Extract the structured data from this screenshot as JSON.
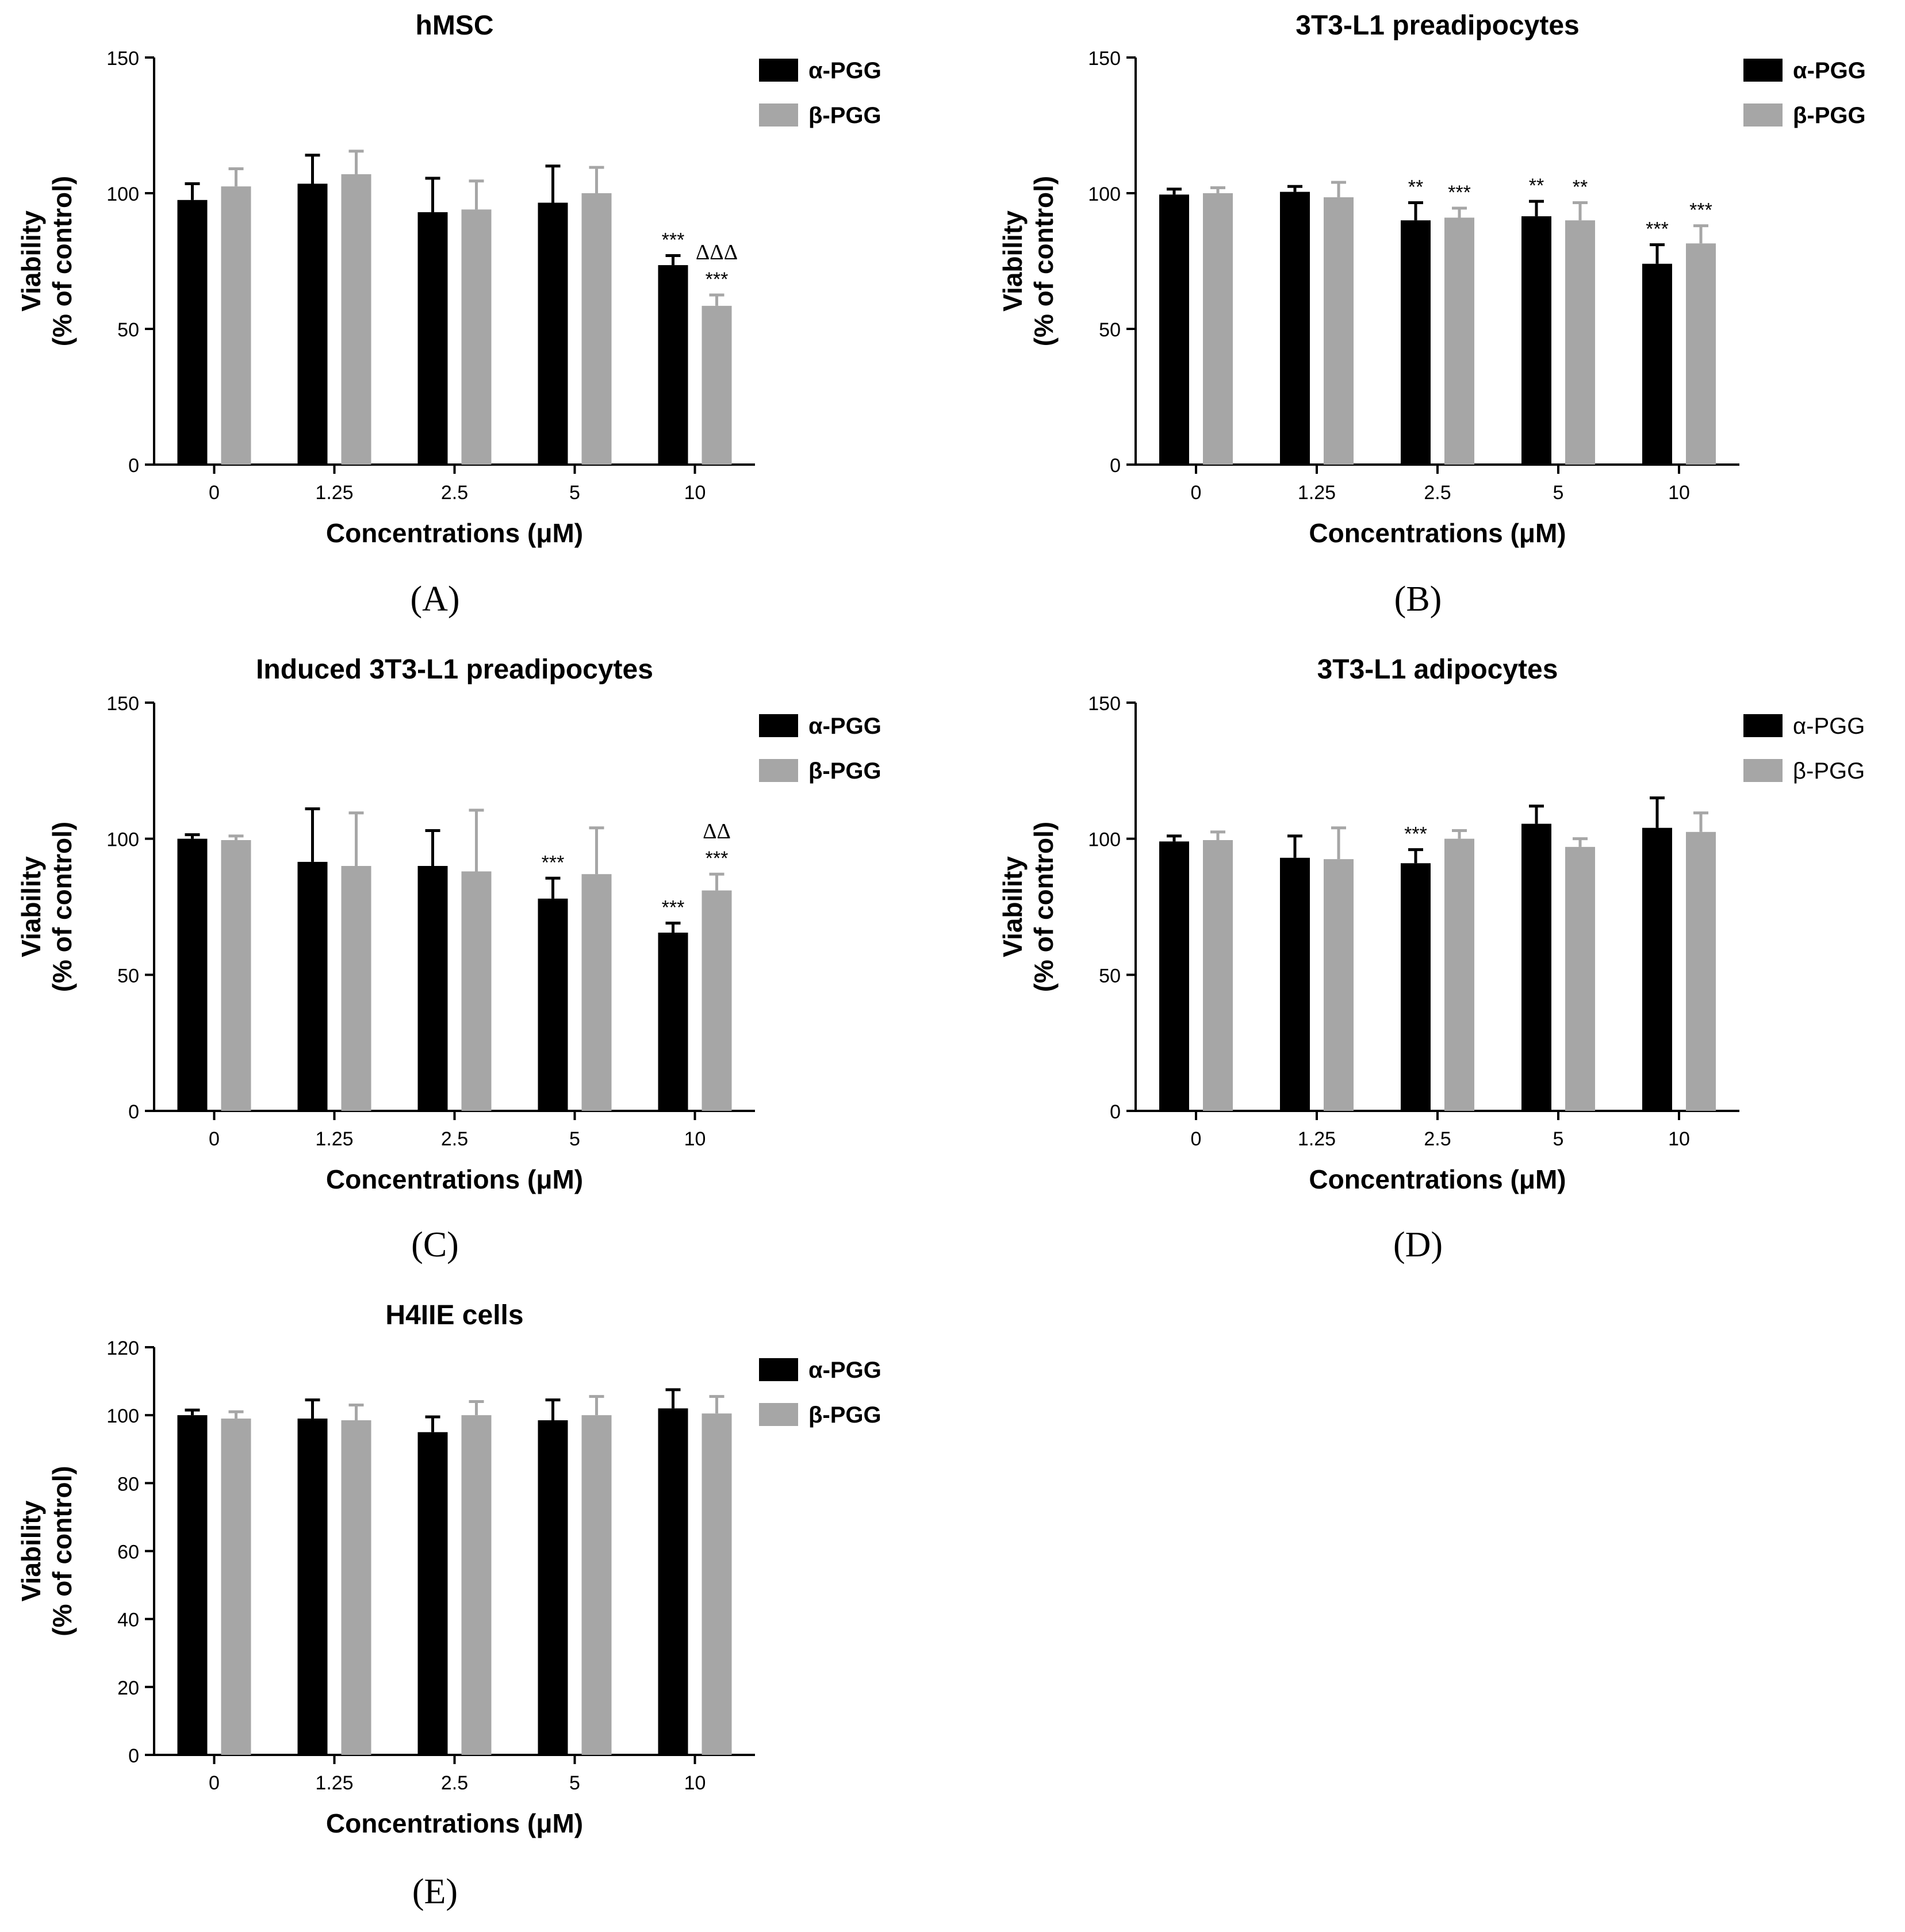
{
  "colors": {
    "alpha": "#000000",
    "beta": "#a6a6a6",
    "axis": "#000000",
    "background": "#ffffff"
  },
  "legend_names": [
    "α-PGG",
    "β-PGG"
  ],
  "chart_data": [
    {
      "type": "bar",
      "panel_label": "(A)",
      "title": "hMSC",
      "xlabel": "Concentrations (μM)",
      "ylabel_line1": "Viability",
      "ylabel_line2": "(% of control)",
      "ylim": [
        0,
        150
      ],
      "yticks": [
        0,
        50,
        100,
        150
      ],
      "categories": [
        "0",
        "1.25",
        "2.5",
        "5",
        "10"
      ],
      "legend": [
        "α-PGG",
        "β-PGG"
      ],
      "series": [
        {
          "name": "α-PGG",
          "values": [
            97.5,
            103.5,
            93,
            96.5,
            73.5
          ],
          "errors": [
            6,
            10.5,
            12.5,
            13.5,
            3.5
          ],
          "annotations": [
            [],
            [],
            [],
            [],
            [
              "***"
            ]
          ]
        },
        {
          "name": "β-PGG",
          "values": [
            102.5,
            107,
            94,
            100,
            58.5
          ],
          "errors": [
            6.5,
            8.5,
            10.5,
            9.5,
            4
          ],
          "annotations": [
            [],
            [],
            [],
            [],
            [
              "***",
              "ΔΔΔ"
            ]
          ]
        }
      ]
    },
    {
      "type": "bar",
      "panel_label": "(B)",
      "title": "3T3-L1 preadipocytes",
      "xlabel": "Concentrations (μM)",
      "ylabel_line1": "Viability",
      "ylabel_line2": "(% of control)",
      "ylim": [
        0,
        150
      ],
      "yticks": [
        0,
        50,
        100,
        150
      ],
      "categories": [
        "0",
        "1.25",
        "2.5",
        "5",
        "10"
      ],
      "legend": [
        "α-PGG",
        "β-PGG"
      ],
      "series": [
        {
          "name": "α-PGG",
          "values": [
            99.5,
            100.5,
            90,
            91.5,
            74
          ],
          "errors": [
            2,
            2,
            6.5,
            5.5,
            7
          ],
          "annotations": [
            [],
            [],
            [
              "**"
            ],
            [
              "**"
            ],
            [
              "***"
            ]
          ]
        },
        {
          "name": "β-PGG",
          "values": [
            100,
            98.5,
            91,
            90,
            81.5
          ],
          "errors": [
            2,
            5.5,
            3.5,
            6.5,
            6.5
          ],
          "annotations": [
            [],
            [],
            [
              "***"
            ],
            [
              "**"
            ],
            [
              "***"
            ]
          ]
        }
      ]
    },
    {
      "type": "bar",
      "panel_label": "(C)",
      "title": "Induced 3T3-L1 preadipocytes",
      "xlabel": "Concentrations (μM)",
      "ylabel_line1": "Viability",
      "ylabel_line2": "(% of control)",
      "ylim": [
        0,
        150
      ],
      "yticks": [
        0,
        50,
        100,
        150
      ],
      "categories": [
        "0",
        "1.25",
        "2.5",
        "5",
        "10"
      ],
      "legend": [
        "α-PGG",
        "β-PGG"
      ],
      "series": [
        {
          "name": "α-PGG",
          "values": [
            100,
            91.5,
            90,
            78,
            65.5
          ],
          "errors": [
            1.5,
            19.5,
            13,
            7.5,
            3.5
          ],
          "annotations": [
            [],
            [],
            [],
            [
              "***"
            ],
            [
              "***"
            ]
          ]
        },
        {
          "name": "β-PGG",
          "values": [
            99.5,
            90,
            88,
            87,
            81
          ],
          "errors": [
            1.5,
            19.5,
            22.5,
            17,
            6
          ],
          "annotations": [
            [],
            [],
            [],
            [],
            [
              "***",
              "ΔΔ"
            ]
          ]
        }
      ]
    },
    {
      "type": "bar",
      "panel_label": "(D)",
      "title": "3T3-L1 adipocytes",
      "xlabel": "Concentrations (μM)",
      "ylabel_line1": "Viability",
      "ylabel_line2": "(% of control)",
      "ylim": [
        0,
        150
      ],
      "yticks": [
        0,
        50,
        100,
        150
      ],
      "categories": [
        "0",
        "1.25",
        "2.5",
        "5",
        "10"
      ],
      "legend": [
        "α-PGG",
        "β-PGG"
      ],
      "series": [
        {
          "name": "α-PGG",
          "values": [
            99,
            93,
            91,
            105.5,
            104
          ],
          "errors": [
            2,
            8,
            5,
            6.5,
            11
          ],
          "annotations": [
            [],
            [],
            [
              "***"
            ],
            [],
            []
          ]
        },
        {
          "name": "β-PGG",
          "values": [
            99.5,
            92.5,
            100,
            97,
            102.5
          ],
          "errors": [
            3,
            11.5,
            3,
            3,
            7
          ],
          "annotations": [
            [],
            [],
            [],
            [],
            []
          ]
        }
      ]
    },
    {
      "type": "bar",
      "panel_label": "(E)",
      "title": "H4IIE cells",
      "xlabel": "Concentrations (μM)",
      "ylabel_line1": "Viability",
      "ylabel_line2": "(% of control)",
      "ylim": [
        0,
        120
      ],
      "yticks": [
        0,
        20,
        40,
        60,
        80,
        100,
        120
      ],
      "categories": [
        "0",
        "1.25",
        "2.5",
        "5",
        "10"
      ],
      "legend": [
        "α-PGG",
        "β-PGG"
      ],
      "series": [
        {
          "name": "α-PGG",
          "values": [
            100,
            99,
            95,
            98.5,
            102
          ],
          "errors": [
            1.5,
            5.5,
            4.5,
            6,
            5.5
          ],
          "annotations": [
            [],
            [],
            [],
            [],
            []
          ]
        },
        {
          "name": "β-PGG",
          "values": [
            99,
            98.5,
            100,
            100,
            100.5
          ],
          "errors": [
            2,
            4.5,
            4,
            5.5,
            5
          ],
          "annotations": [
            [],
            [],
            [],
            [],
            []
          ]
        }
      ]
    }
  ]
}
